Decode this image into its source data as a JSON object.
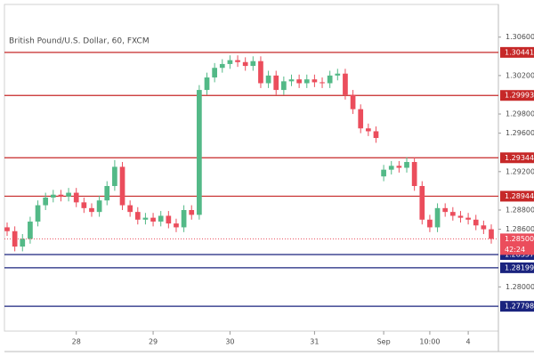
{
  "chart_data": {
    "type": "candlestick",
    "title": "British Pound/U.S. Dollar, 60, FXCM",
    "categories": [
      null,
      null,
      null,
      null,
      null,
      null,
      null,
      null,
      null,
      "28",
      null,
      null,
      null,
      null,
      null,
      null,
      null,
      null,
      null,
      "29",
      null,
      null,
      null,
      null,
      null,
      null,
      null,
      null,
      null,
      "30",
      null,
      null,
      null,
      null,
      null,
      null,
      null,
      null,
      null,
      null,
      "31",
      null,
      null,
      null,
      null,
      null,
      null,
      null,
      null,
      "Sep",
      null,
      null,
      null,
      null,
      null,
      "10:00",
      null,
      null,
      null,
      null,
      "4",
      null,
      null,
      null
    ],
    "open": [
      1.2862,
      1.2858,
      1.2842,
      1.285,
      1.2868,
      1.2885,
      1.2893,
      1.2896,
      1.2894,
      1.2898,
      1.2888,
      1.2882,
      1.2878,
      1.289,
      1.2905,
      1.2925,
      1.2885,
      1.2878,
      1.287,
      1.2872,
      1.2868,
      1.2874,
      1.2866,
      1.2862,
      1.288,
      1.2875,
      1.3005,
      1.3018,
      1.3028,
      1.3032,
      1.3036,
      1.3034,
      1.303,
      1.3035,
      1.3012,
      1.302,
      1.3005,
      1.3014,
      1.3016,
      1.3012,
      1.3016,
      1.3013,
      1.3012,
      1.302,
      1.3022,
      1.3,
      1.2985,
      1.2965,
      1.2962,
      1.2915,
      1.2922,
      1.2926,
      1.2924,
      1.293,
      1.2905,
      1.287,
      1.2862,
      1.2882,
      1.2878,
      1.2874,
      1.2872,
      1.287,
      1.2864,
      1.286
    ],
    "high": [
      1.2867,
      1.2863,
      1.2855,
      1.2873,
      1.289,
      1.2898,
      1.2901,
      1.2901,
      1.2903,
      1.2903,
      1.2893,
      1.2887,
      1.2895,
      1.291,
      1.2932,
      1.293,
      1.289,
      1.2883,
      1.2877,
      1.2877,
      1.2879,
      1.2879,
      1.2871,
      1.2885,
      1.2885,
      1.301,
      1.3023,
      1.3033,
      1.3037,
      1.3041,
      1.3041,
      1.3039,
      1.304,
      1.304,
      1.3025,
      1.3025,
      1.3019,
      1.3021,
      1.3021,
      1.3021,
      1.3021,
      1.3018,
      1.3025,
      1.3027,
      1.3027,
      1.3005,
      1.299,
      1.297,
      1.2967,
      1.2927,
      1.2931,
      1.2931,
      1.2935,
      1.2935,
      1.291,
      1.2875,
      1.2887,
      1.2887,
      1.2883,
      1.2879,
      1.2877,
      1.2875,
      1.2869,
      1.2865
    ],
    "low": [
      1.2853,
      1.2837,
      1.2837,
      1.2845,
      1.2863,
      1.288,
      1.2888,
      1.2889,
      1.2889,
      1.2883,
      1.2877,
      1.2873,
      1.2873,
      1.2885,
      1.29,
      1.288,
      1.2873,
      1.2865,
      1.2865,
      1.2863,
      1.2863,
      1.2861,
      1.2857,
      1.2857,
      1.287,
      1.287,
      1.3,
      1.3013,
      1.3023,
      1.3027,
      1.3029,
      1.3025,
      1.3025,
      1.3007,
      1.3007,
      1.3,
      1.3,
      1.3009,
      1.3007,
      1.3007,
      1.3008,
      1.3007,
      1.3007,
      1.3015,
      1.2995,
      1.298,
      1.296,
      1.2957,
      1.295,
      1.291,
      1.2917,
      1.2919,
      1.2919,
      1.29,
      1.2865,
      1.2857,
      1.2857,
      1.2873,
      1.2869,
      1.2867,
      1.2865,
      1.2859,
      1.2855,
      1.2845
    ],
    "close": [
      1.2858,
      1.2842,
      1.285,
      1.2868,
      1.2885,
      1.2893,
      1.2896,
      1.2894,
      1.2898,
      1.2888,
      1.2882,
      1.2878,
      1.289,
      1.2905,
      1.2925,
      1.2885,
      1.2878,
      1.287,
      1.2872,
      1.2868,
      1.2874,
      1.2866,
      1.2862,
      1.288,
      1.2875,
      1.3005,
      1.3018,
      1.3028,
      1.3032,
      1.3036,
      1.3034,
      1.303,
      1.3035,
      1.3012,
      1.302,
      1.3005,
      1.3014,
      1.3016,
      1.3012,
      1.3016,
      1.3013,
      1.3012,
      1.302,
      1.3022,
      1.3,
      1.2985,
      1.2965,
      1.2962,
      1.2955,
      1.2922,
      1.2926,
      1.2924,
      1.293,
      1.2905,
      1.287,
      1.2862,
      1.2882,
      1.2878,
      1.2874,
      1.2872,
      1.287,
      1.2864,
      1.286,
      1.285
    ],
    "up_color": "#53b987",
    "down_color": "#eb4d5c",
    "ylim": [
      1.2754,
      1.3094
    ],
    "yticks": [
      {
        "value": 1.306,
        "label": "1.30600"
      },
      {
        "value": 1.302,
        "label": "1.30200"
      },
      {
        "value": 1.298,
        "label": "1.29800"
      },
      {
        "value": 1.296,
        "label": "1.29600"
      },
      {
        "value": 1.292,
        "label": "1.29200"
      },
      {
        "value": 1.288,
        "label": "1.28800"
      },
      {
        "value": 1.286,
        "label": "1.28600"
      },
      {
        "value": 1.28,
        "label": "1.28000"
      }
    ],
    "levels": [
      {
        "value": 1.30441,
        "color": "#c62828"
      },
      {
        "value": 1.29993,
        "color": "#c62828"
      },
      {
        "value": 1.29344,
        "color": "#c62828"
      },
      {
        "value": 1.28944,
        "color": "#c62828"
      },
      {
        "value": 1.28337,
        "color": "#1a237e"
      },
      {
        "value": 1.28199,
        "color": "#1a237e"
      },
      {
        "value": 1.27798,
        "color": "#1a237e"
      }
    ],
    "current_price": {
      "value": 1.285,
      "label": "1.28500",
      "color": "#eb4d5c"
    },
    "countdown": "42:24"
  }
}
